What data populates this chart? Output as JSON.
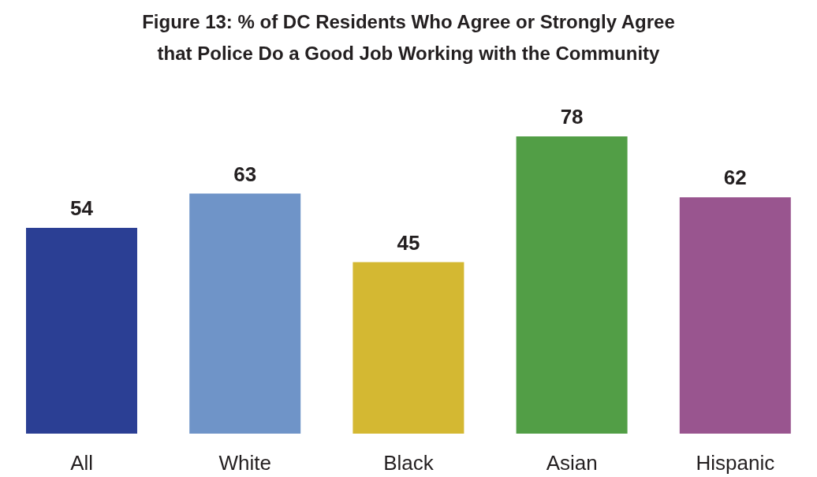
{
  "chart_data": {
    "type": "bar",
    "title": "Figure 13: % of DC Residents Who Agree or Strongly Agree that Police Do a Good Job Working with the Community",
    "categories": [
      "All",
      "White",
      "Black",
      "Asian",
      "Hispanic"
    ],
    "values": [
      54,
      63,
      45,
      78,
      62
    ],
    "colors": [
      "#2b3f94",
      "#6f94c8",
      "#d4b832",
      "#529e46",
      "#99558f"
    ],
    "data_labels": true
  }
}
